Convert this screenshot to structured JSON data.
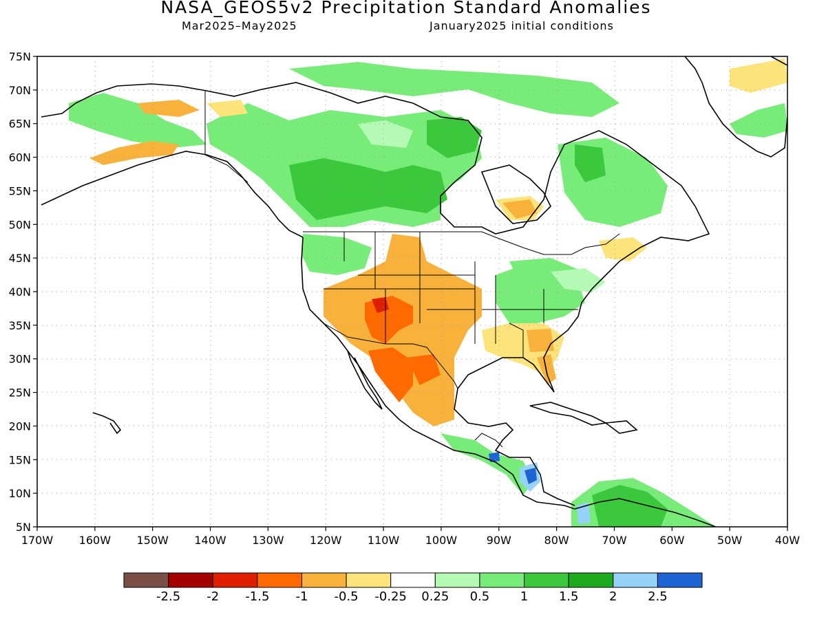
{
  "title": "NASA_GEOS5v2 Precipitation Standard Anomalies",
  "period": "Mar2025–May2025",
  "initial_conditions": "January2025 initial conditions",
  "map": {
    "region": "North America",
    "lon_range": [
      -170,
      -40
    ],
    "lat_range": [
      5,
      75
    ],
    "lon_ticks": [
      "170W",
      "160W",
      "150W",
      "140W",
      "130W",
      "120W",
      "110W",
      "100W",
      "90W",
      "80W",
      "70W",
      "60W",
      "50W",
      "40W"
    ],
    "lat_ticks": [
      "5N",
      "10N",
      "15N",
      "20N",
      "25N",
      "30N",
      "35N",
      "40N",
      "45N",
      "50N",
      "55N",
      "60N",
      "65N",
      "70N",
      "75N"
    ],
    "grid": "dotted"
  },
  "colorbar": {
    "colors": [
      "#7a5046",
      "#a40000",
      "#e01e00",
      "#ff6a00",
      "#f8b23c",
      "#fce37a",
      "#ffffff",
      "#b4fab4",
      "#78ec78",
      "#3cc83c",
      "#1eaa1e",
      "#96d2fa",
      "#1e64d2"
    ],
    "labels": [
      "-2.5",
      "-2",
      "-1.5",
      "-1",
      "-0.5",
      "-0.25",
      "0.25",
      "0.5",
      "1",
      "1.5",
      "2",
      "2.5"
    ]
  },
  "anomaly_regions": [
    {
      "name": "Southwest US / Mexico",
      "level": "-1.5"
    },
    {
      "name": "Central Plains",
      "level": "-0.5"
    },
    {
      "name": "Southeast US",
      "level": "-0.5"
    },
    {
      "name": "Western Canada",
      "level": "1"
    },
    {
      "name": "Ohio Valley",
      "level": "0.5"
    },
    {
      "name": "Central America Caribbean coast",
      "level": "2.5"
    },
    {
      "name": "Northern South America",
      "level": "1"
    }
  ]
}
